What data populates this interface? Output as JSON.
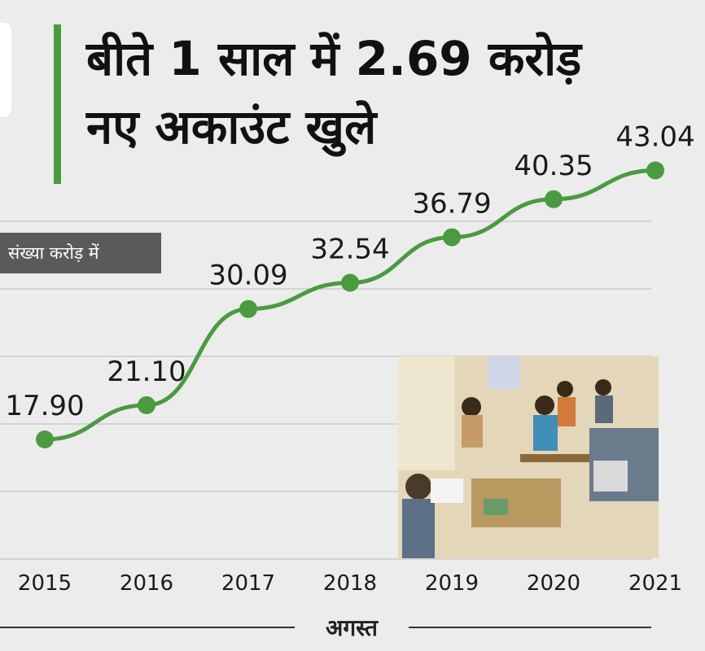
{
  "header": {
    "title_line1": "बीते 1 साल में 2.69 करोड़",
    "title_line2": "नए अकाउंट खुले"
  },
  "unit_label": "संख्या करोड़ में",
  "footer_label": "अगस्त",
  "colors": {
    "accent_green": "#4a9b3f",
    "background": "#ececec",
    "badge": "#5a5a5a"
  },
  "photo": {
    "icon": "bank-counter-photo"
  },
  "chart_data": {
    "type": "line",
    "categories": [
      "2015",
      "2016",
      "2017",
      "2018",
      "2019",
      "2020",
      "2021"
    ],
    "series": [
      {
        "values": [
          17.9,
          21.1,
          30.09,
          32.54,
          36.79,
          40.35,
          43.04
        ]
      }
    ],
    "data_labels": [
      "17.90",
      "21.10",
      "30.09",
      "32.54",
      "36.79",
      "40.35",
      "43.04"
    ],
    "xlabel": "अगस्त",
    "ylabel": "संख्या करोड़ में",
    "grid": true,
    "legend": "none"
  }
}
